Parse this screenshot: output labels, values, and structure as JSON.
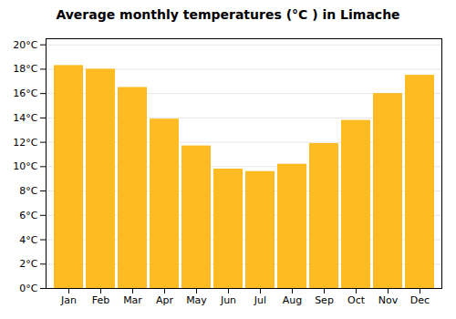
{
  "chart_data": {
    "type": "bar",
    "title": "Average monthly temperatures (°C ) in Limache",
    "categories": [
      "Jan",
      "Feb",
      "Mar",
      "Apr",
      "May",
      "Jun",
      "Jul",
      "Aug",
      "Sep",
      "Oct",
      "Nov",
      "Dec"
    ],
    "values": [
      18.3,
      18.0,
      16.5,
      13.9,
      11.7,
      9.8,
      9.6,
      10.2,
      11.9,
      13.8,
      16.0,
      17.5
    ],
    "color": "#FFBB22",
    "ylim": [
      0,
      20.5
    ],
    "yticks": [
      {
        "value": 0,
        "label": "0°C"
      },
      {
        "value": 2,
        "label": "2°C"
      },
      {
        "value": 4,
        "label": "4°C"
      },
      {
        "value": 6,
        "label": "6°C"
      },
      {
        "value": 8,
        "label": "8°C"
      },
      {
        "value": 10,
        "label": "10°C"
      },
      {
        "value": 12,
        "label": "12°C"
      },
      {
        "value": 14,
        "label": "14°C"
      },
      {
        "value": 16,
        "label": "16°C"
      },
      {
        "value": 18,
        "label": "18°C"
      },
      {
        "value": 20,
        "label": "20°C"
      }
    ],
    "grid": true
  }
}
